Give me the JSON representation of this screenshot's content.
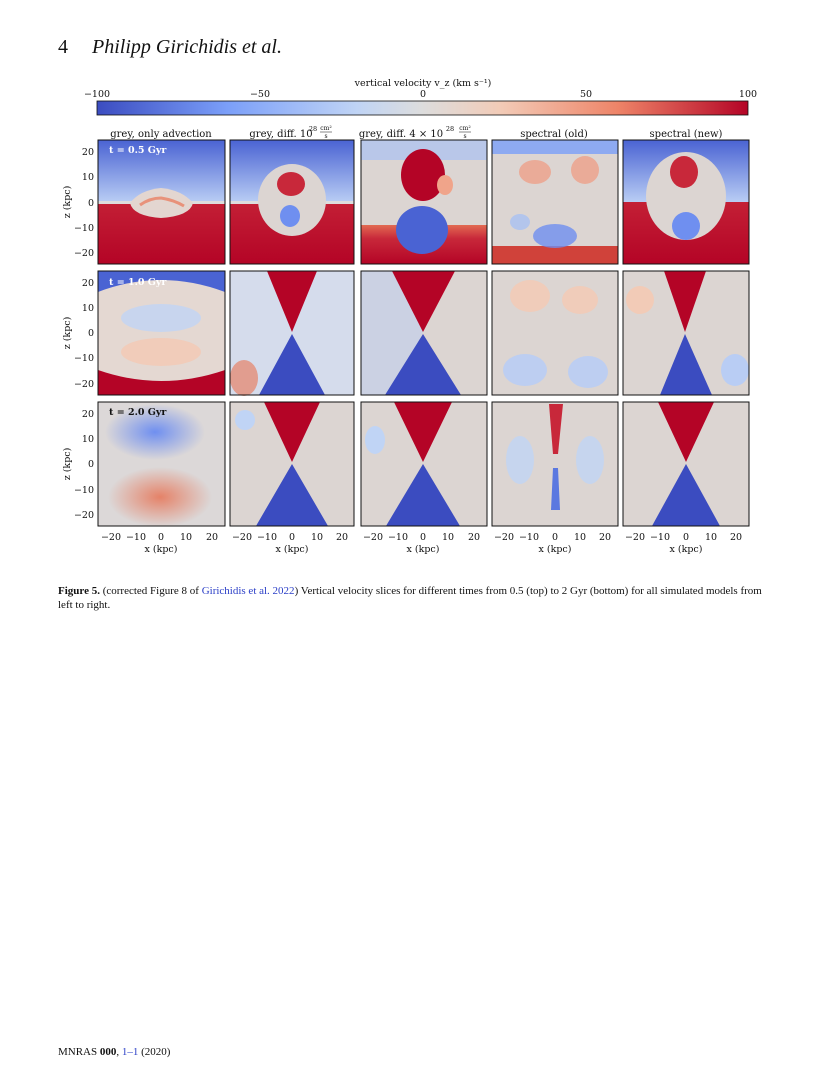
{
  "header": {
    "page_number": "4",
    "running_head": "Philipp Girichidis et al."
  },
  "colorbar": {
    "label": "vertical velocity v_z (km s⁻¹)",
    "ticks": [
      "−100",
      "−50",
      "0",
      "50",
      "100"
    ],
    "vmin": -100,
    "vmax": 100,
    "colormap": [
      "#3b4cc0",
      "#7b9ff9",
      "#c0d4f5",
      "#dddddd",
      "#f2cbb7",
      "#ee8468",
      "#b40426"
    ]
  },
  "columns": [
    {
      "title": "grey, only advection"
    },
    {
      "title_main": "grey, diff. 10",
      "title_sup": "28",
      "title_frac_num": "cm²",
      "title_frac_den": "s"
    },
    {
      "title_main": "grey, diff. 4 × 10",
      "title_sup": "28",
      "title_frac_num": "cm²",
      "title_frac_den": "s"
    },
    {
      "title": "spectral (old)"
    },
    {
      "title": "spectral (new)"
    }
  ],
  "rows": [
    {
      "time_label": "t = 0.5 Gyr"
    },
    {
      "time_label": "t = 1.0 Gyr"
    },
    {
      "time_label": "t = 2.0 Gyr"
    }
  ],
  "axes": {
    "ylabel": "z (kpc)",
    "xlabel": "x (kpc)",
    "yticks": [
      "20",
      "10",
      "0",
      "−10",
      "−20"
    ],
    "xticks": [
      "−20",
      "−10",
      "0",
      "10",
      "20"
    ]
  },
  "caption": {
    "label": "Figure 5.",
    "text_before_link": " (corrected Figure 8 of ",
    "link_text": "Girichidis et al. 2022",
    "text_after_link": ") Vertical velocity slices for different times from 0.5 (top) to 2 Gyr (bottom) for all simulated models from left to right."
  },
  "footer": {
    "journal": "MNRAS",
    "volume": "000",
    "pages": "1–1",
    "year": "(2020)"
  }
}
